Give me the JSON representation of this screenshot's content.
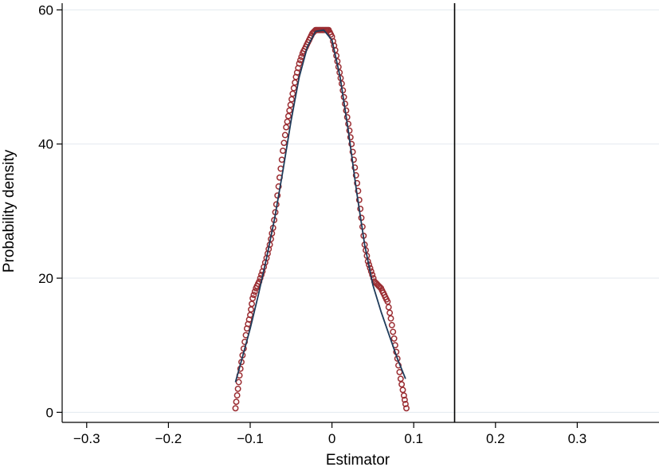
{
  "chart_data": {
    "type": "line",
    "title": "",
    "xlabel": "Estimator",
    "ylabel": "Probability density",
    "xlim": [
      -0.33,
      0.4
    ],
    "ylim": [
      -1.5,
      61
    ],
    "x_ticks": [
      -0.3,
      -0.2,
      -0.1,
      0,
      0.1,
      0.2,
      0.3
    ],
    "x_tick_labels": [
      "−0.3",
      "−0.2",
      "−0.1",
      "0",
      "0.1",
      "0.2",
      "0.3"
    ],
    "y_ticks": [
      0,
      20,
      40,
      60
    ],
    "y_tick_labels": [
      "0",
      "20",
      "40",
      "60"
    ],
    "grid": true,
    "legend": "none",
    "reference_line_x": 0.15,
    "colors": {
      "markers": "#9b2d32",
      "fitted_line": "#1f3b5a",
      "grid": "#e3e9ef",
      "ref_line": "#000000"
    },
    "series": [
      {
        "style": "hollow-circle-markers",
        "x": [
          -0.118,
          -0.115,
          -0.112,
          -0.108,
          -0.104,
          -0.1,
          -0.097,
          -0.093,
          -0.089,
          -0.085,
          -0.08,
          -0.076,
          -0.072,
          -0.068,
          -0.064,
          -0.06,
          -0.056,
          -0.052,
          -0.048,
          -0.044,
          -0.04,
          -0.036,
          -0.032,
          -0.028,
          -0.024,
          -0.02,
          -0.016,
          -0.012,
          -0.008,
          -0.004,
          0.0,
          0.004,
          0.008,
          0.012,
          0.016,
          0.02,
          0.024,
          0.028,
          0.032,
          0.036,
          0.04,
          0.044,
          0.048,
          0.052,
          0.056,
          0.06,
          0.064,
          0.068,
          0.072,
          0.076,
          0.08,
          0.084,
          0.088,
          0.091
        ],
        "y": [
          0.6,
          3.5,
          6.5,
          9.5,
          12.5,
          14.5,
          17.0,
          18.5,
          19.5,
          21.0,
          23.0,
          25.0,
          27.5,
          31.0,
          35.0,
          39.0,
          42.5,
          45.0,
          47.5,
          50.0,
          52.0,
          53.5,
          54.5,
          55.5,
          56.5,
          57.0,
          57.0,
          57.0,
          57.0,
          57.0,
          56.0,
          54.0,
          51.5,
          49.0,
          46.0,
          43.0,
          40.0,
          36.5,
          33.0,
          29.0,
          25.0,
          22.5,
          21.0,
          19.5,
          19.0,
          18.5,
          17.5,
          16.5,
          14.0,
          11.0,
          8.0,
          5.0,
          2.5,
          0.6
        ]
      },
      {
        "style": "line",
        "x": [
          -0.118,
          -0.11,
          -0.1,
          -0.09,
          -0.08,
          -0.07,
          -0.06,
          -0.05,
          -0.04,
          -0.03,
          -0.02,
          -0.01,
          0.0,
          0.01,
          0.02,
          0.03,
          0.04,
          0.05,
          0.06,
          0.07,
          0.08,
          0.09
        ],
        "y": [
          4.5,
          8.0,
          12.5,
          17.5,
          23.0,
          29.0,
          36.0,
          43.5,
          50.0,
          54.5,
          56.8,
          57.0,
          55.5,
          50.0,
          42.0,
          33.0,
          25.0,
          19.0,
          15.0,
          11.5,
          8.0,
          5.0
        ]
      }
    ]
  }
}
